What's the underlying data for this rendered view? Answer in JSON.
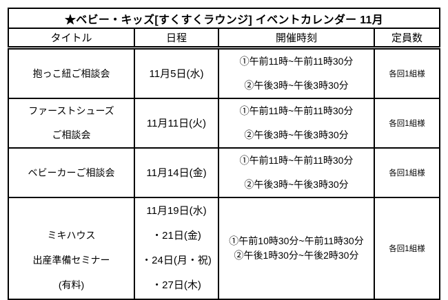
{
  "page": {
    "background_color": "#ffffff",
    "border_color": "#000000",
    "text_color": "#000000"
  },
  "calendar": {
    "title": "★ベビー・キッズ[すくすくラウンジ] イベントカレンダー 11月",
    "columns": {
      "title": "タイトル",
      "date": "日程",
      "time": "開催時刻",
      "capacity": "定員数"
    },
    "rows": [
      {
        "title_lines": [
          "抱っこ紐ご相談会"
        ],
        "date_lines": [
          "11月5日(水)"
        ],
        "time_lines": [
          "①午前11時~午前11時30分",
          "②午後3時~午後3時30分"
        ],
        "capacity": "各回1組様"
      },
      {
        "title_lines": [
          "ファーストシューズ",
          "ご相談会"
        ],
        "date_lines": [
          "11月11日(火)"
        ],
        "time_lines": [
          "①午前11時~午前11時30分",
          "②午後3時~午後3時30分"
        ],
        "capacity": "各回1組様"
      },
      {
        "title_lines": [
          "ベビーカーご相談会"
        ],
        "date_lines": [
          "11月14日(金)"
        ],
        "time_lines": [
          "①午前11時~午前11時30分",
          "②午後3時~午後3時30分"
        ],
        "capacity": "各回1組様"
      },
      {
        "title_lines": [
          "ミキハウス",
          "出産準備セミナー",
          "(有料)"
        ],
        "date_lines": [
          "11月19日(水)",
          "・21日(金)",
          "・24日(月・祝)",
          "・27日(木)"
        ],
        "time_lines": [
          "①午前10時30分~午前11時30分",
          "②午後1時30分~午後2時30分"
        ],
        "capacity": "各回1組様"
      }
    ]
  }
}
